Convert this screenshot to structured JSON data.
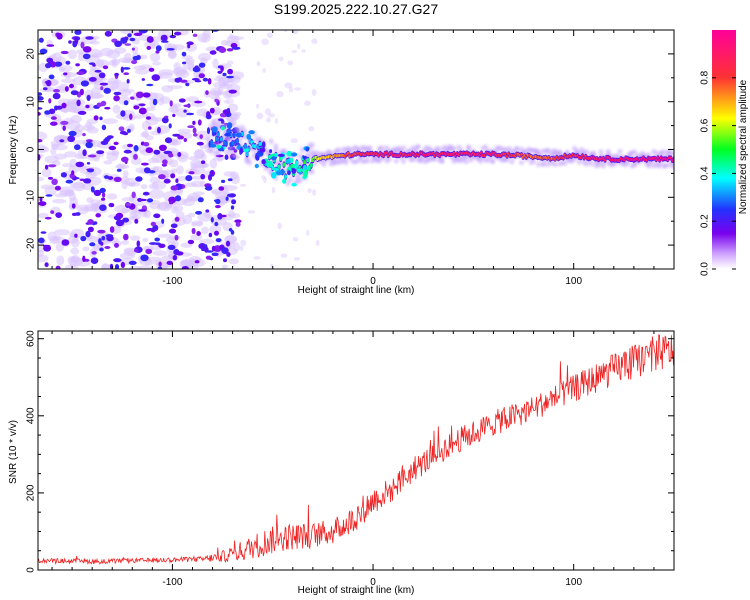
{
  "title": "S199.2025.222.10.27.G27",
  "colors": {
    "snr_line": "#ee2222",
    "colormap": [
      "#ffffff",
      "#cc99ff",
      "#7700ee",
      "#2233ff",
      "#00ffff",
      "#00ff22",
      "#ffff00",
      "#ff3333",
      "#ff0099"
    ]
  },
  "chart_data": [
    {
      "type": "heatmap",
      "title": "S199.2025.222.10.27.G27",
      "xlabel": "Height of straight line (km)",
      "ylabel": "Frequency (Hz)",
      "xlim": [
        -167,
        150
      ],
      "ylim": [
        -25,
        25
      ],
      "xticks": [
        -100,
        0,
        100
      ],
      "yticks": [
        -20,
        -10,
        0,
        10,
        20
      ],
      "xtick_labels": [
        "-100",
        "0",
        "100"
      ],
      "ytick_labels": [
        "-20",
        "-10",
        "0",
        "10",
        "20"
      ],
      "colorbar": {
        "label": "Normalized spectral amplitude",
        "range": [
          0,
          1
        ],
        "ticks": [
          0.0,
          0.2,
          0.4,
          0.6,
          0.8
        ],
        "tick_labels": [
          "0.0",
          "0.2",
          "0.4",
          "0.6",
          "0.8"
        ]
      },
      "ridge": {
        "x": [
          -80,
          -70,
          -60,
          -50,
          -45,
          -40,
          -35,
          -30,
          -20,
          -10,
          0,
          20,
          40,
          60,
          70,
          80,
          90,
          100,
          110,
          120,
          140,
          150
        ],
        "freq": [
          2.5,
          2.0,
          0.5,
          -2.0,
          -3.5,
          -4.5,
          -3.0,
          -2.0,
          -1.5,
          -1.0,
          -1.0,
          -1.0,
          -1.0,
          -1.0,
          -1.2,
          -1.5,
          -1.8,
          -1.2,
          -1.8,
          -2.0,
          -2.0,
          -2.0
        ],
        "amplitude": [
          0.3,
          0.35,
          0.4,
          0.45,
          0.5,
          0.5,
          0.55,
          0.6,
          0.7,
          0.8,
          0.85,
          0.9,
          0.9,
          0.88,
          0.8,
          0.75,
          0.78,
          0.85,
          0.9,
          0.92,
          0.95,
          0.95
        ]
      },
      "noise_region_x": [
        -167,
        -67
      ]
    },
    {
      "type": "line",
      "xlabel": "Height of straight line (km)",
      "ylabel": "SNR (10 * v/v)",
      "xlim": [
        -167,
        150
      ],
      "ylim": [
        0,
        620
      ],
      "xticks": [
        -100,
        0,
        100
      ],
      "yticks": [
        0,
        200,
        400,
        600
      ],
      "xtick_labels": [
        "-100",
        "0",
        "100"
      ],
      "ytick_labels": [
        "0",
        "200",
        "400",
        "600"
      ],
      "series": [
        {
          "name": "SNR",
          "trend_x": [
            -167,
            -140,
            -110,
            -85,
            -75,
            -65,
            -55,
            -45,
            -30,
            -20,
            -10,
            0,
            10,
            20,
            40,
            60,
            80,
            100,
            120,
            140,
            150
          ],
          "trend_y": [
            25,
            22,
            25,
            28,
            35,
            50,
            70,
            85,
            90,
            100,
            130,
            180,
            210,
            260,
            330,
            380,
            420,
            470,
            520,
            560,
            570
          ],
          "noise_y": [
            10,
            10,
            10,
            12,
            25,
            45,
            60,
            60,
            55,
            55,
            60,
            60,
            55,
            55,
            55,
            55,
            55,
            60,
            70,
            80,
            80
          ]
        }
      ]
    }
  ]
}
